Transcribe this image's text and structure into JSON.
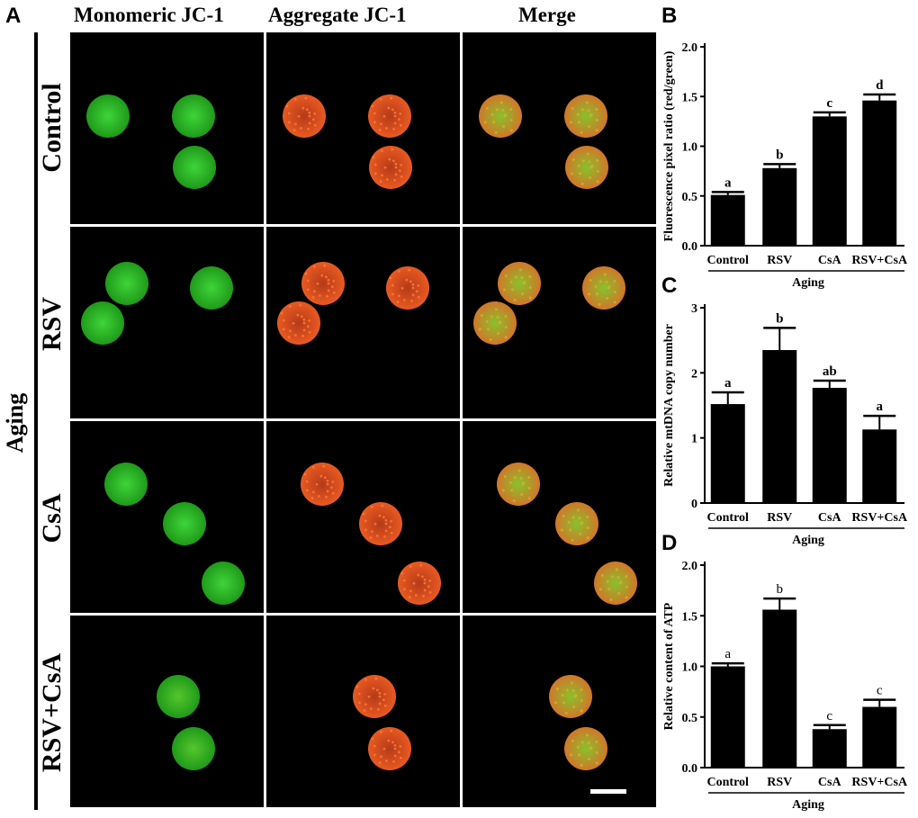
{
  "figure": {
    "panel_letters": [
      "A",
      "B",
      "C",
      "D"
    ],
    "column_headers": [
      "Monomeric JC-1",
      "Aggregate JC-1",
      "Merge"
    ],
    "row_labels": [
      "Control",
      "RSV",
      "CsA",
      "RSV+CsA"
    ],
    "group_label": "Aging",
    "colors": {
      "green": "#22c41c",
      "red": "#e0461c",
      "yellow": "#d6b12a",
      "bar": "#000000"
    }
  },
  "chart_data": [
    {
      "panel": "B",
      "type": "bar",
      "categories": [
        "Control",
        "RSV",
        "CsA",
        "RSV+CsA"
      ],
      "values": [
        0.51,
        0.78,
        1.3,
        1.46
      ],
      "errors": [
        0.03,
        0.04,
        0.04,
        0.06
      ],
      "significance_letters": [
        "a",
        "b",
        "c",
        "d"
      ],
      "ylabel": "Fluorescence pixel ratio (red/green)",
      "xlabel": "Aging",
      "ylim": [
        0,
        2.0
      ],
      "yticks": [
        "0.0",
        "0.5",
        "1.0",
        "1.5",
        "2.0"
      ]
    },
    {
      "panel": "C",
      "type": "bar",
      "categories": [
        "Control",
        "RSV",
        "CsA",
        "RSV+CsA"
      ],
      "values": [
        1.52,
        2.35,
        1.77,
        1.13
      ],
      "errors": [
        0.18,
        0.34,
        0.11,
        0.21
      ],
      "significance_letters": [
        "a",
        "b",
        "ab",
        "a"
      ],
      "ylabel": "Relative mtDNA copy number",
      "xlabel": "Aging",
      "ylim": [
        0,
        3
      ],
      "yticks": [
        "0",
        "1",
        "2",
        "3"
      ]
    },
    {
      "panel": "D",
      "type": "bar",
      "categories": [
        "Control",
        "RSV",
        "CsA",
        "RSV+CsA"
      ],
      "values": [
        1.0,
        1.56,
        0.38,
        0.6
      ],
      "errors": [
        0.03,
        0.11,
        0.04,
        0.07
      ],
      "significance_letters": [
        "a",
        "b",
        "c",
        "c"
      ],
      "ylabel": "Relative content of ATP",
      "xlabel": "Aging",
      "ylim": [
        0,
        2.0
      ],
      "yticks": [
        "0.0",
        "0.5",
        "1.0",
        "1.5",
        "2.0"
      ]
    }
  ]
}
